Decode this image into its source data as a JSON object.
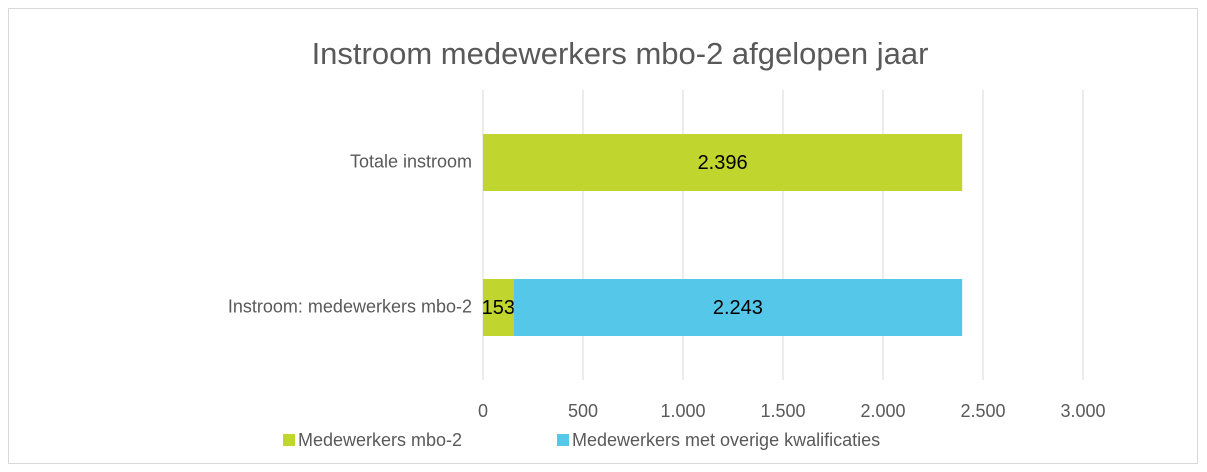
{
  "chart_data": {
    "type": "bar",
    "orientation": "horizontal",
    "stacked": true,
    "title": "Instroom medewerkers mbo-2 afgelopen jaar",
    "categories": [
      "Totale instroom",
      "Instroom: medewerkers mbo-2"
    ],
    "series": [
      {
        "name": "Medewerkers mbo-2",
        "color": "#c1d52f",
        "values": [
          2396,
          153
        ],
        "value_labels": [
          "2.396",
          "153"
        ]
      },
      {
        "name": "Medewerkers met overige kwalificaties",
        "color": "#55c8ea",
        "values": [
          null,
          2243
        ],
        "value_labels": [
          null,
          "2.243"
        ]
      }
    ],
    "xlim": [
      0,
      3000
    ],
    "xticks": [
      0,
      500,
      {
        "value": 1000,
        "label": "1.000"
      },
      {
        "value": 1500,
        "label": "1.500"
      },
      {
        "value": 2000,
        "label": "2.000"
      },
      {
        "value": 2500,
        "label": "2.500"
      },
      {
        "value": 3000,
        "label": "3.000"
      }
    ],
    "grid": true,
    "legend": "bottom"
  }
}
